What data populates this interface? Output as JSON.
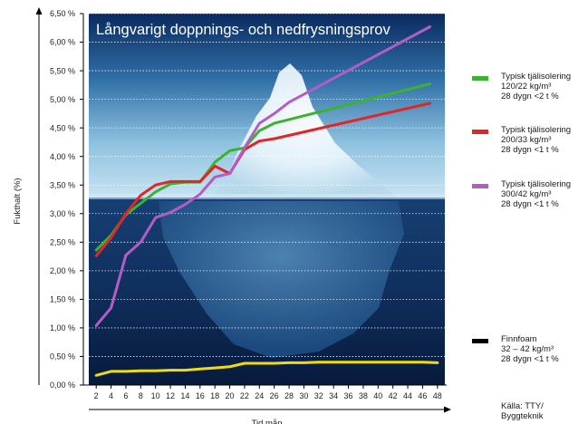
{
  "chart_data": {
    "type": "line",
    "title": "Långvarigt doppnings- och nedfrysningsprov",
    "xlabel": "Tid mån",
    "ylabel": "Fukthalt (%)",
    "ylim": [
      0,
      6.5
    ],
    "xlim": [
      1,
      49
    ],
    "y_ticks": [
      0,
      0.5,
      1.0,
      1.5,
      2.0,
      2.5,
      3.0,
      3.5,
      4.0,
      4.5,
      5.0,
      5.5,
      6.0,
      6.5
    ],
    "y_tick_labels": [
      "0,00 %",
      "0,50 %",
      "1,00 %",
      "1,50 %",
      "2,00 %",
      "2,50 %",
      "3,00 %",
      "3,50 %",
      "4,00 %",
      "4,50 %",
      "5,00 %",
      "5,50 %",
      "6,00 %",
      "6,50 %"
    ],
    "x_ticks": [
      2,
      4,
      6,
      8,
      10,
      12,
      14,
      16,
      18,
      20,
      22,
      24,
      26,
      28,
      30,
      32,
      34,
      36,
      38,
      40,
      42,
      44,
      46,
      48
    ],
    "grid": "horizontal, dotted white",
    "legend_position": "right",
    "series": [
      {
        "name": "Typisk tjälisolering",
        "legend_lines": [
          "Typisk tjälisolering",
          "120/22 kg/m³",
          "28 dygn <2 t %"
        ],
        "color": "#3cb233",
        "x": [
          2,
          4,
          6,
          8,
          10,
          12,
          14,
          16,
          18,
          20,
          22,
          24,
          26,
          47
        ],
        "y": [
          2.36,
          2.62,
          2.98,
          3.18,
          3.38,
          3.52,
          3.55,
          3.55,
          3.9,
          4.1,
          4.15,
          4.45,
          4.58,
          5.27
        ]
      },
      {
        "name": "Typisk tjälisolering",
        "legend_lines": [
          "Typisk tjälisolering",
          "200/33 kg/m³",
          "28 dygn <1 t %"
        ],
        "color": "#e02626",
        "x": [
          2,
          4,
          6,
          8,
          10,
          12,
          14,
          16,
          18,
          20,
          22,
          24,
          26,
          47
        ],
        "y": [
          2.26,
          2.58,
          3.0,
          3.32,
          3.5,
          3.56,
          3.56,
          3.56,
          3.83,
          3.7,
          4.12,
          4.27,
          4.31,
          4.93
        ]
      },
      {
        "name": "Typisk tjälisolering",
        "legend_lines": [
          "Typisk tjälisolering",
          "300/42 kg/m³",
          "28 dygn <1 t %"
        ],
        "color": "#b45cc6",
        "x": [
          2,
          4,
          6,
          8,
          10,
          12,
          14,
          16,
          18,
          20,
          22,
          24,
          26,
          28,
          47
        ],
        "y": [
          1.04,
          1.35,
          2.27,
          2.5,
          2.93,
          3.02,
          3.16,
          3.34,
          3.64,
          3.7,
          4.15,
          4.58,
          4.75,
          4.95,
          6.27
        ]
      },
      {
        "name": "Finnfoam",
        "legend_lines": [
          "Finnfoam",
          "32 – 42 kg/m³",
          "28 dygn <1 t %"
        ],
        "color": "#f0dc14",
        "legend_color": "#000000",
        "x": [
          2,
          4,
          6,
          8,
          10,
          12,
          14,
          16,
          18,
          20,
          22,
          24,
          26,
          28,
          30,
          32,
          34,
          36,
          38,
          40,
          42,
          44,
          46,
          48
        ],
        "y": [
          0.17,
          0.24,
          0.24,
          0.25,
          0.25,
          0.26,
          0.26,
          0.28,
          0.3,
          0.32,
          0.38,
          0.38,
          0.38,
          0.39,
          0.39,
          0.4,
          0.4,
          0.4,
          0.4,
          0.4,
          0.4,
          0.4,
          0.4,
          0.39
        ]
      }
    ],
    "source": [
      "Källa: TTY/",
      "Byggteknik"
    ]
  }
}
